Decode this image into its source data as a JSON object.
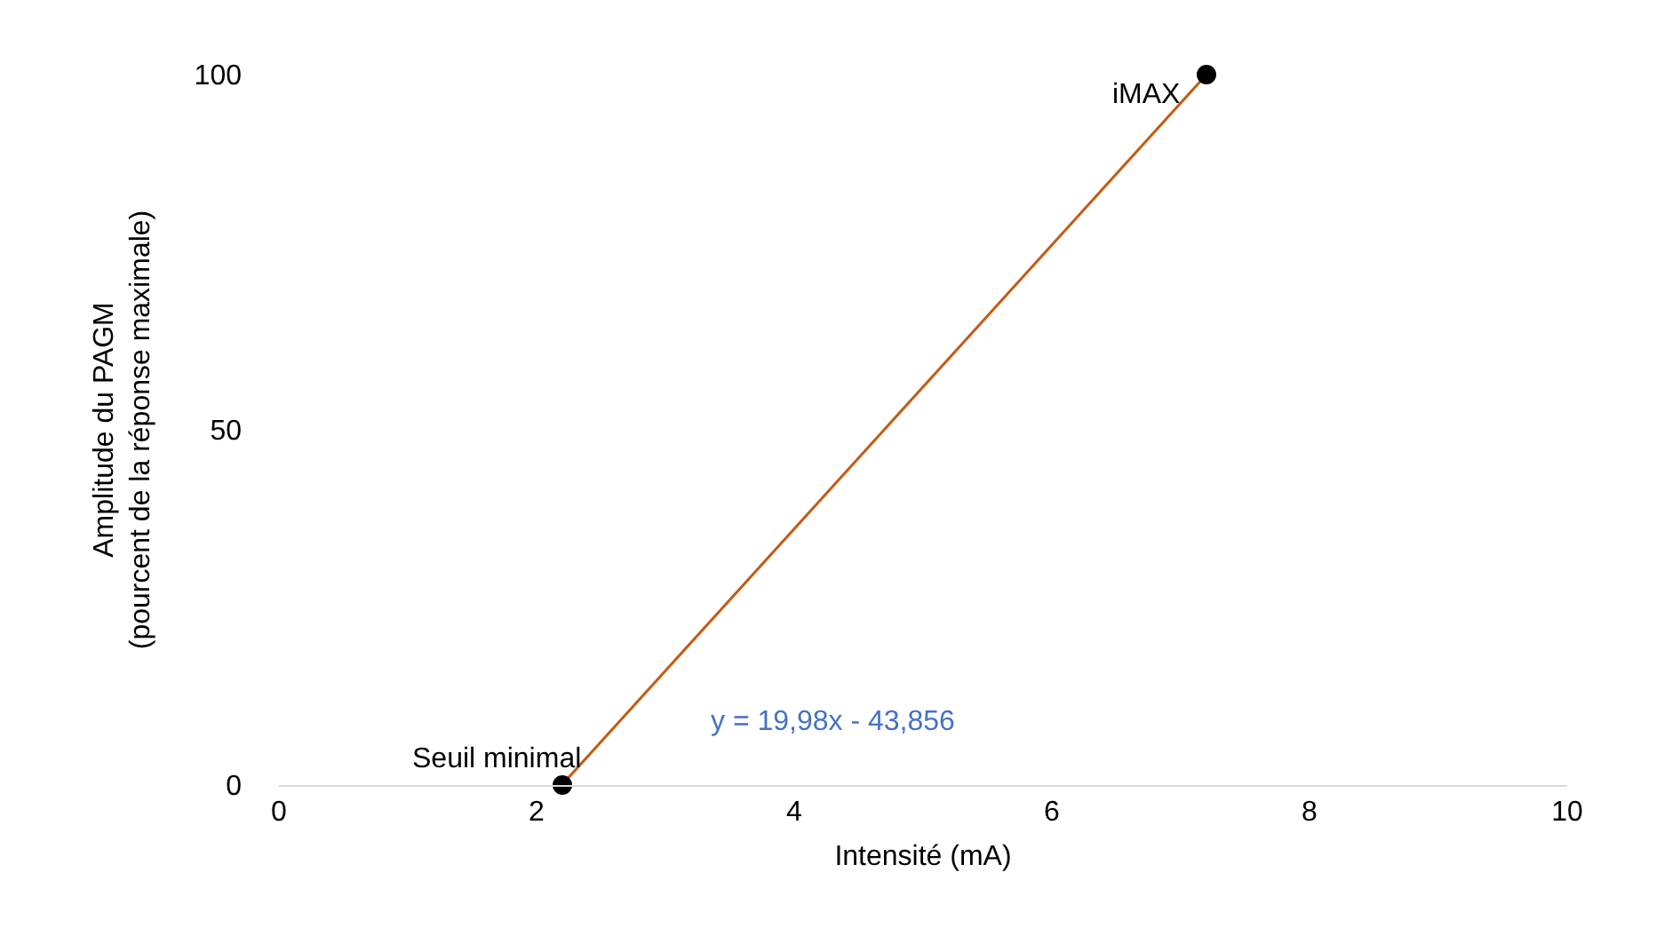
{
  "chart_data": {
    "type": "scatter",
    "xlabel": "Intensité (mA)",
    "ylabel": "Amplitude du PAGM\n(pourcent de la réponse maximale)",
    "xlim": [
      0,
      10
    ],
    "xticks": [
      0,
      2,
      4,
      6,
      8,
      10
    ],
    "ylim": [
      0,
      100
    ],
    "yticks": [
      0,
      50,
      100
    ],
    "grid": false,
    "marker": "circle",
    "series": [
      {
        "type": "line",
        "color": "#c55a11",
        "x": [
          2.195,
          7.2
        ],
        "values": [
          0,
          100
        ],
        "marker": "none"
      },
      {
        "color": "#000000",
        "x": [
          2.2,
          7.2
        ],
        "values": [
          0,
          100
        ]
      }
    ],
    "annotations": [
      {
        "text": "Seuil minimal",
        "x": 2.2,
        "y": 0
      },
      {
        "text": "iMAX",
        "x": 7.2,
        "y": 100
      },
      "y = 19,98x - 43,856"
    ]
  }
}
